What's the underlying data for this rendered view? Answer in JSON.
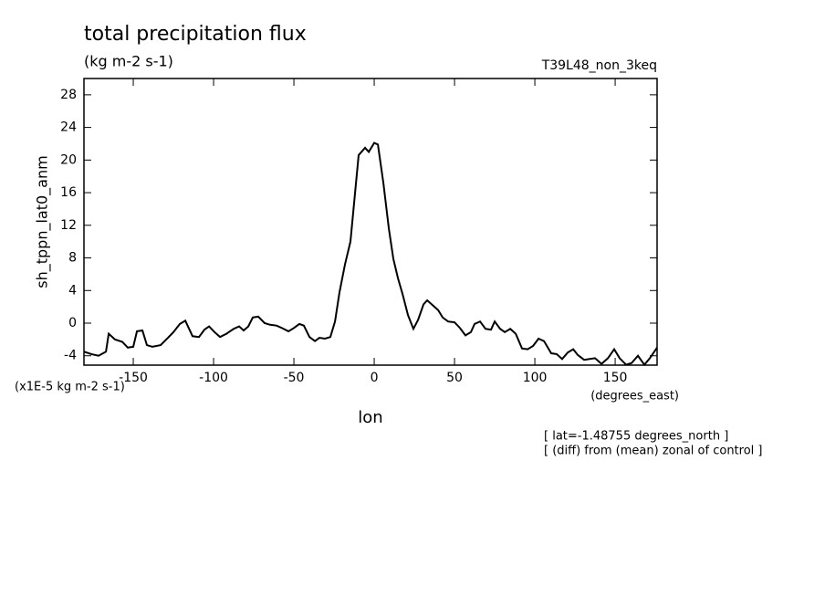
{
  "chart_data": {
    "type": "line",
    "title": "total precipitation flux",
    "subtitle": "(kg m-2 s-1)",
    "dataset_label": "T39L48_non_3keq",
    "y_label": "sh_tppn_lat0_anm",
    "y_units": "(x1E-5 kg m-2 s-1)",
    "x_label": "lon",
    "x_units": "(degrees_east)",
    "annotations": [
      "[ lat=-1.48755 degrees_north ]",
      "[ (diff) from (mean) zonal of control ]"
    ],
    "color": "#000000",
    "x": [
      -180.7,
      -176.1,
      -171.6,
      -167.0,
      -165.3,
      -161.4,
      -156.8,
      -153.4,
      -150.0,
      -147.7,
      -144.3,
      -141.5,
      -138.1,
      -133.0,
      -128.4,
      -125.0,
      -121.0,
      -117.6,
      -113.1,
      -109.1,
      -105.7,
      -102.8,
      -99.4,
      -96.0,
      -92.0,
      -87.5,
      -84.1,
      -81.3,
      -78.4,
      -75.6,
      -72.2,
      -68.2,
      -64.8,
      -60.8,
      -57.4,
      -53.4,
      -50.0,
      -46.6,
      -43.8,
      -40.3,
      -36.9,
      -34.1,
      -30.7,
      -27.3,
      -24.4,
      -21.6,
      -18.2,
      -14.8,
      -9.7,
      -5.7,
      -3.4,
      0,
      2.3,
      5.7,
      9.1,
      11.9,
      14.8,
      17.6,
      21.0,
      24.4,
      27.3,
      30.7,
      33.0,
      36.4,
      39.8,
      42.6,
      46.0,
      50.0,
      53.4,
      56.8,
      60.2,
      62.5,
      65.9,
      69.3,
      72.7,
      75.0,
      78.4,
      81.3,
      84.7,
      88.1,
      92.0,
      95.5,
      98.9,
      102.3,
      105.7,
      110.2,
      113.6,
      117.0,
      120.5,
      123.9,
      126.7,
      130.7,
      134.1,
      137.5,
      141.5,
      145.5,
      149.4,
      152.8,
      156.8,
      160.2,
      164.2,
      168.2,
      171.6,
      176.1
    ],
    "values": [
      -3.5,
      -3.8,
      -4.0,
      -3.5,
      -1.3,
      -2.0,
      -2.3,
      -3.0,
      -2.9,
      -1.0,
      -0.9,
      -2.7,
      -2.9,
      -2.7,
      -1.8,
      -1.1,
      -0.1,
      0.3,
      -1.6,
      -1.7,
      -0.8,
      -0.4,
      -1.1,
      -1.7,
      -1.3,
      -0.7,
      -0.4,
      -0.9,
      -0.4,
      0.7,
      0.8,
      0,
      -0.2,
      -0.3,
      -0.6,
      -1.0,
      -0.6,
      -0.1,
      -0.3,
      -1.7,
      -2.2,
      -1.8,
      -1.9,
      -1.7,
      0.2,
      3.8,
      7.2,
      10.0,
      20.6,
      21.5,
      21.0,
      22.1,
      21.9,
      17.2,
      11.6,
      7.9,
      5.5,
      3.6,
      1.0,
      -0.7,
      0.4,
      2.3,
      2.8,
      2.2,
      1.6,
      0.7,
      0.2,
      0.1,
      -0.6,
      -1.5,
      -1.1,
      -0.1,
      0.2,
      -0.7,
      -0.8,
      0.2,
      -0.7,
      -1.1,
      -0.7,
      -1.3,
      -3.1,
      -3.2,
      -2.8,
      -1.9,
      -2.2,
      -3.7,
      -3.8,
      -4.4,
      -3.6,
      -3.2,
      -3.9,
      -4.5,
      -4.4,
      -4.3,
      -5.0,
      -4.3,
      -3.2,
      -4.3,
      -5.1,
      -4.9,
      -4.0,
      -5.1,
      -4.3,
      -3.0
    ],
    "xlim": [
      -180.7,
      176.1
    ],
    "ylim": [
      -5.15,
      30
    ],
    "xticks": [
      -150,
      -100,
      -50,
      0,
      50,
      100,
      150
    ],
    "yticks": [
      -4,
      0,
      4,
      8,
      12,
      16,
      20,
      24,
      28
    ]
  }
}
